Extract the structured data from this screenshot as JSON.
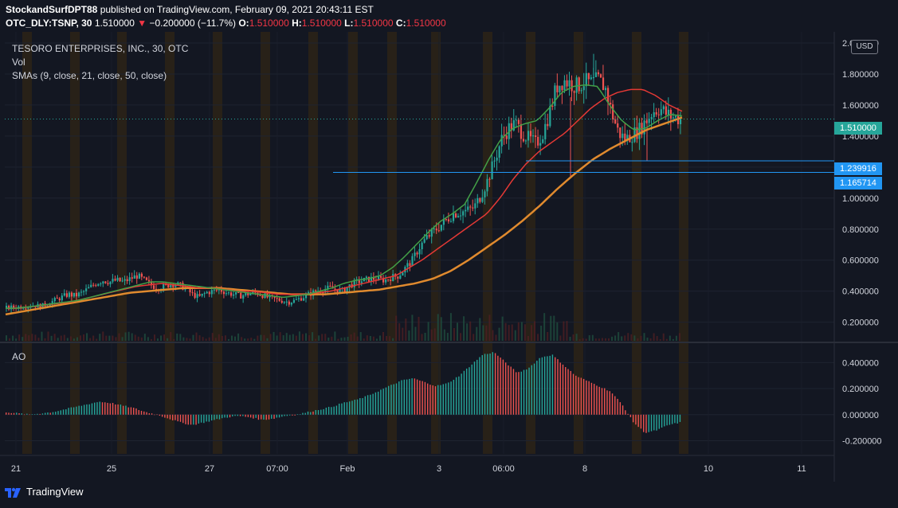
{
  "header": {
    "publisher": "StockandSurfDPT88",
    "published_text": " published on TradingView.com, February 09, 2021 20:43:11 EST"
  },
  "quote": {
    "symbol": "OTC_DLY:TSNP, 30",
    "last": "1.510000",
    "change_arrow": "▼",
    "change": "−0.200000 (−11.7%)",
    "o_label": "O:",
    "o": "1.510000",
    "h_label": "H:",
    "h": "1.510000",
    "l_label": "L:",
    "l": "1.510000",
    "c_label": "C:",
    "c": "1.510000"
  },
  "legend": {
    "title": "TESORO ENTERPRISES, INC., 30, OTC",
    "vol": "Vol",
    "smas": "SMAs (9, close, 21, close, 50, close)",
    "ao": "AO"
  },
  "currency_button": "USD",
  "price_tags": {
    "last": "1.510000",
    "h1": "1.239916",
    "h2": "1.165714"
  },
  "footer": {
    "brand": "TradingView",
    "logo_icon": "tradingview-logo-icon"
  },
  "colors": {
    "background": "#131722",
    "up": "#26a69a",
    "down": "#ef5350",
    "sma9": "#43a047",
    "sma21": "#e53935",
    "sma50": "#e08a2e",
    "hline": "#2196f3",
    "session": "#3a2a10",
    "last_tag": "#26a69a"
  },
  "chart_data": [
    {
      "type": "candlestick",
      "panel": "price",
      "title": "TESORO ENTERPRISES, INC., 30, OTC",
      "x_ticks": [
        "21",
        "25",
        "27",
        "07:00",
        "Feb",
        "3",
        "06:00",
        "8",
        "10",
        "11"
      ],
      "y_ticks": [
        "0.200000",
        "0.400000",
        "0.600000",
        "0.800000",
        "1.000000",
        "1.200000",
        "1.400000",
        "1.600000",
        "1.800000",
        "2.000000"
      ],
      "y_range": [
        0.08,
        2.0
      ],
      "horizontal_lines": [
        1.239916,
        1.165714
      ],
      "last_price": 1.51,
      "close_path": [
        0.29,
        0.295,
        0.3,
        0.305,
        0.31,
        0.3,
        0.32,
        0.34,
        0.36,
        0.38,
        0.37,
        0.39,
        0.42,
        0.45,
        0.47,
        0.46,
        0.47,
        0.46,
        0.48,
        0.5,
        0.47,
        0.44,
        0.42,
        0.43,
        0.45,
        0.44,
        0.42,
        0.38,
        0.36,
        0.39,
        0.4,
        0.41,
        0.39,
        0.38,
        0.37,
        0.38,
        0.39,
        0.38,
        0.36,
        0.35,
        0.34,
        0.33,
        0.34,
        0.36,
        0.38,
        0.4,
        0.41,
        0.42,
        0.41,
        0.4,
        0.44,
        0.46,
        0.47,
        0.48,
        0.48,
        0.47,
        0.49,
        0.5,
        0.55,
        0.6,
        0.68,
        0.74,
        0.78,
        0.82,
        0.86,
        0.9,
        0.91,
        0.92,
        0.94,
        1.02,
        1.12,
        1.25,
        1.38,
        1.45,
        1.48,
        1.42,
        1.38,
        1.35,
        1.42,
        1.56,
        1.72,
        1.76,
        1.74,
        1.72,
        1.75,
        1.74,
        1.76,
        1.72,
        1.55,
        1.42,
        1.38,
        1.41,
        1.44,
        1.5,
        1.56,
        1.58,
        1.54,
        1.52,
        1.51
      ],
      "sma9_path": [
        0.29,
        0.29,
        0.3,
        0.31,
        0.32,
        0.33,
        0.34,
        0.36,
        0.38,
        0.4,
        0.42,
        0.44,
        0.46,
        0.46,
        0.45,
        0.44,
        0.43,
        0.42,
        0.41,
        0.4,
        0.39,
        0.38,
        0.37,
        0.36,
        0.37,
        0.38,
        0.4,
        0.42,
        0.45,
        0.47,
        0.48,
        0.5,
        0.55,
        0.62,
        0.7,
        0.78,
        0.85,
        0.9,
        0.96,
        1.1,
        1.25,
        1.38,
        1.45,
        1.48,
        1.5,
        1.58,
        1.68,
        1.72,
        1.73,
        1.72,
        1.6,
        1.5,
        1.44,
        1.45,
        1.5,
        1.54,
        1.53
      ],
      "sma21_path": [
        0.29,
        0.29,
        0.3,
        0.31,
        0.32,
        0.33,
        0.35,
        0.37,
        0.39,
        0.41,
        0.43,
        0.44,
        0.45,
        0.44,
        0.43,
        0.42,
        0.42,
        0.41,
        0.4,
        0.4,
        0.39,
        0.38,
        0.38,
        0.38,
        0.39,
        0.4,
        0.42,
        0.44,
        0.46,
        0.48,
        0.5,
        0.55,
        0.6,
        0.66,
        0.72,
        0.78,
        0.84,
        0.9,
        1.0,
        1.12,
        1.22,
        1.3,
        1.36,
        1.42,
        1.5,
        1.58,
        1.64,
        1.68,
        1.7,
        1.7,
        1.66,
        1.6,
        1.56
      ],
      "sma50_path": [
        0.25,
        0.27,
        0.29,
        0.31,
        0.33,
        0.35,
        0.37,
        0.39,
        0.4,
        0.41,
        0.42,
        0.42,
        0.42,
        0.41,
        0.4,
        0.39,
        0.38,
        0.38,
        0.38,
        0.39,
        0.4,
        0.41,
        0.43,
        0.45,
        0.48,
        0.53,
        0.6,
        0.68,
        0.76,
        0.85,
        0.95,
        1.06,
        1.16,
        1.25,
        1.32,
        1.38,
        1.44,
        1.48,
        1.52
      ]
    },
    {
      "type": "histogram",
      "panel": "AO",
      "title": "AO",
      "y_ticks": [
        "-0.200000",
        "0.000000",
        "0.200000",
        "0.400000"
      ],
      "y_range": [
        -0.24,
        0.5
      ],
      "values_path": [
        0.02,
        0.01,
        0.0,
        0.01,
        0.02,
        0.04,
        0.06,
        0.08,
        0.1,
        0.09,
        0.07,
        0.05,
        0.02,
        0.0,
        -0.03,
        -0.06,
        -0.08,
        -0.06,
        -0.04,
        -0.02,
        -0.01,
        -0.02,
        -0.04,
        -0.03,
        -0.01,
        0.0,
        0.02,
        0.04,
        0.06,
        0.09,
        0.11,
        0.14,
        0.18,
        0.22,
        0.26,
        0.28,
        0.25,
        0.22,
        0.24,
        0.3,
        0.38,
        0.46,
        0.48,
        0.4,
        0.32,
        0.36,
        0.44,
        0.46,
        0.38,
        0.3,
        0.26,
        0.22,
        0.18,
        0.08,
        -0.06,
        -0.14,
        -0.12,
        -0.08,
        -0.06
      ]
    }
  ]
}
